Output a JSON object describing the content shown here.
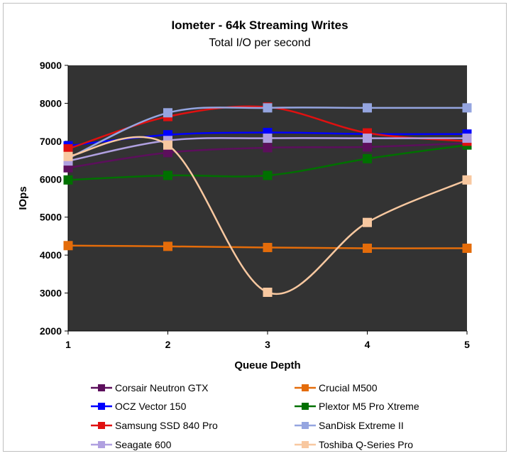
{
  "chart_data": {
    "type": "line",
    "title": "Iometer - 64k Streaming Writes",
    "subtitle": "Total I/O per second",
    "xlabel": "Queue Depth",
    "ylabel": "IOps",
    "x": [
      1,
      2,
      3,
      4,
      5
    ],
    "xlim": [
      1,
      5
    ],
    "ylim": [
      2000,
      9000
    ],
    "yticks": [
      2000,
      3000,
      4000,
      5000,
      6000,
      7000,
      8000,
      9000
    ],
    "grid": false,
    "legend_position": "bottom",
    "plot_background": "#333333",
    "series": [
      {
        "name": "Corsair Neutron GTX",
        "color": "#5c0f5c",
        "values": [
          6300,
          6700,
          6830,
          6850,
          6950
        ]
      },
      {
        "name": "Crucial M500",
        "color": "#e46c0a",
        "values": [
          4250,
          4230,
          4200,
          4180,
          4180
        ]
      },
      {
        "name": "OCZ Vector 150",
        "color": "#0000ff",
        "values": [
          6880,
          7170,
          7230,
          7190,
          7190
        ]
      },
      {
        "name": "Plextor M5 Pro Xtreme",
        "color": "#007000",
        "values": [
          5980,
          6100,
          6100,
          6540,
          6900
        ]
      },
      {
        "name": "Samsung SSD 840 Pro",
        "color": "#e01010",
        "values": [
          6800,
          7650,
          7900,
          7220,
          7000
        ]
      },
      {
        "name": "SanDisk Extreme II",
        "color": "#95a5e0",
        "values": [
          6550,
          7750,
          7880,
          7880,
          7880
        ]
      },
      {
        "name": "Seagate 600",
        "color": "#b0a0e0",
        "values": [
          6480,
          7020,
          7080,
          7080,
          7080
        ]
      },
      {
        "name": "Toshiba Q-Series Pro",
        "color": "#f8c8a0",
        "values": [
          6600,
          6900,
          3020,
          4860,
          5980
        ]
      }
    ]
  }
}
